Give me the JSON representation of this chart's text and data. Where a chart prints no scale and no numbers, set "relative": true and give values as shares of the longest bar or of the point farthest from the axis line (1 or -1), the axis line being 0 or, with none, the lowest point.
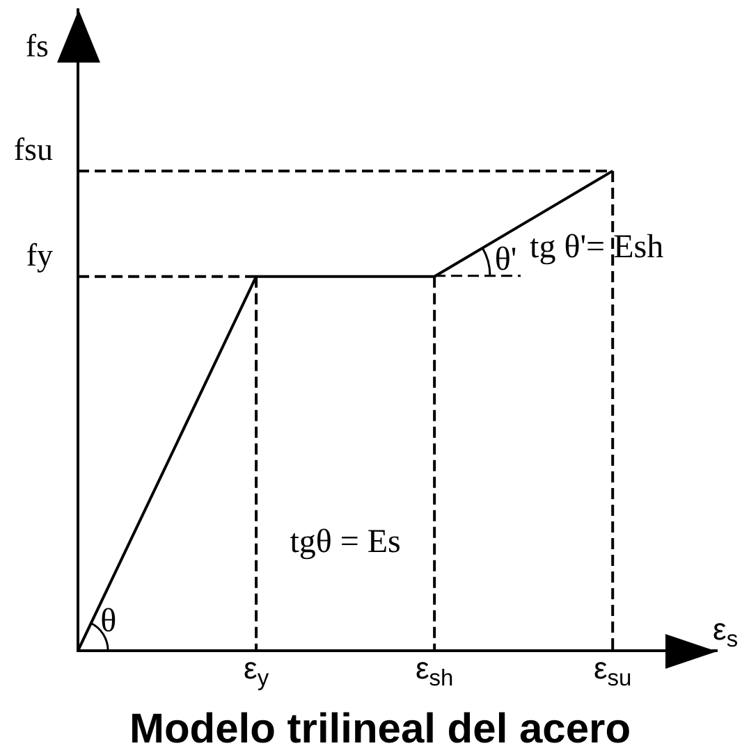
{
  "chart_data": {
    "type": "line",
    "title": "Modelo trilineal del acero",
    "xlabel": "ε$_{s}$",
    "ylabel": "fs",
    "relative": true,
    "categories": [
      null,
      "ε$_{y}$",
      "ε$_{sh}$",
      "ε$_{su}$"
    ],
    "series": [
      {
        "color": "#000000",
        "values": [
          0,
          0.78,
          0.78,
          1
        ]
      },
      {
        "name": "fsu",
        "color": "#000000",
        "values": [
          1,
          1,
          1,
          1
        ],
        "line_style": "dashed"
      }
    ],
    "marker": "none",
    "line_style": "solid",
    "ref_lines": [
      {
        "axis": "x",
        "value": "ε$_{y}$",
        "color": "#000000",
        "line_style": "dashed"
      },
      {
        "axis": "x",
        "value": "ε$_{sh}$",
        "color": "#000000",
        "line_style": "dashed"
      },
      {
        "axis": "x",
        "value": "ε$_{su}$",
        "color": "#000000",
        "line_style": "dashed"
      },
      {
        "axis": "y",
        "value": 0.78,
        "label": "fy",
        "color": "#000000",
        "line_style": "dashed"
      }
    ],
    "annotations": [
      "θ",
      "θ'",
      "tg θ'= Esh",
      "tgθ = Es"
    ]
  }
}
